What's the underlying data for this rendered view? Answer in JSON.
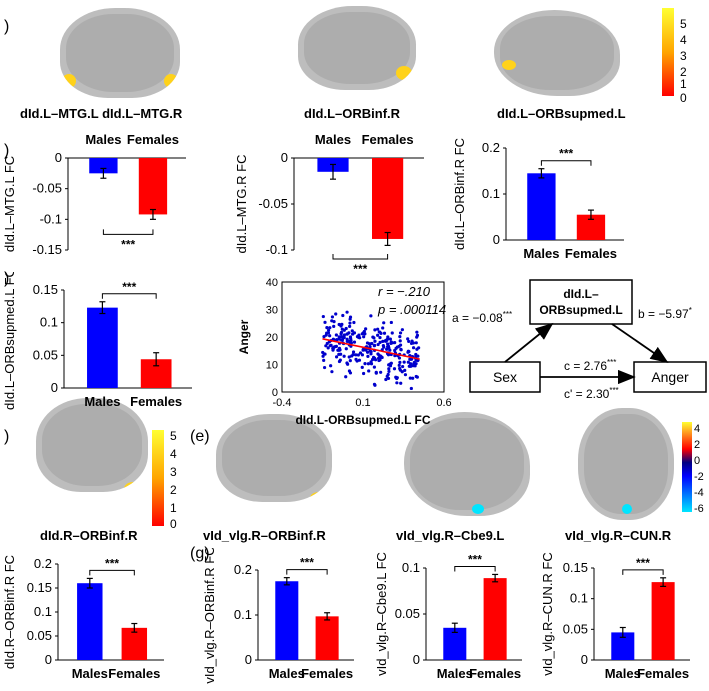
{
  "panel_labels": [
    ")",
    ")",
    ")",
    ")",
    "(e)",
    "(g)"
  ],
  "brain_labels": {
    "b1": "dId.L–MTG.L dId.L–MTG.R",
    "b2": "dId.L–ORBinf.R",
    "b3": "dId.L–ORBsupmed.L",
    "b4": "dId.R–ORBinf.R",
    "b5": "vId_vlg.R–ORBinf.R",
    "b6": "vId_vlg.R–Cbe9.L",
    "b7": "vId_vlg.R–CUN.R"
  },
  "colorbars": {
    "top": {
      "ticks": [
        "5",
        "4",
        "3",
        "2",
        "1",
        "0"
      ],
      "colors": [
        "#ffff33",
        "#ff0000"
      ]
    },
    "mid": {
      "ticks": [
        "5",
        "4",
        "3",
        "2",
        "1",
        "0"
      ],
      "colors": [
        "#ffff33",
        "#ff0000"
      ]
    },
    "right": {
      "ticks": [
        "4",
        "2",
        "0",
        "-2",
        "-4",
        "-6"
      ],
      "colors": [
        "#ffff33",
        "#ff0000",
        "#0000cc",
        "#00e5ff"
      ]
    }
  },
  "significance": "***",
  "chart_data": [
    {
      "id": "c1",
      "type": "bar",
      "categories": [
        "Males",
        "Females"
      ],
      "values": [
        -0.025,
        -0.092
      ],
      "errors": [
        0.008,
        0.008
      ],
      "ylabel": "dId.L–MTG.L FC",
      "ylim": [
        -0.15,
        0
      ],
      "yticks": [
        "0",
        "-0.05",
        "-0.1",
        "-0.15"
      ],
      "colors": [
        "#0000ff",
        "#ff0000"
      ],
      "sig": "***"
    },
    {
      "id": "c2",
      "type": "bar",
      "categories": [
        "Males",
        "Females"
      ],
      "values": [
        -0.015,
        -0.088
      ],
      "errors": [
        0.008,
        0.007
      ],
      "ylabel": "dId.L–MTG.R FC",
      "ylim": [
        -0.1,
        0
      ],
      "yticks": [
        "0",
        "-0.05",
        "-0.1"
      ],
      "colors": [
        "#0000ff",
        "#ff0000"
      ],
      "sig": "***"
    },
    {
      "id": "c3",
      "type": "bar",
      "categories": [
        "Males",
        "Females"
      ],
      "values": [
        0.145,
        0.055
      ],
      "errors": [
        0.01,
        0.01
      ],
      "ylabel": "dId.L–ORBinf.R FC",
      "ylim": [
        0,
        0.2
      ],
      "yticks": [
        "0.2",
        "0.1",
        "0"
      ],
      "colors": [
        "#0000ff",
        "#ff0000"
      ],
      "sig": "***"
    },
    {
      "id": "c4",
      "type": "bar",
      "categories": [
        "Males",
        "Females"
      ],
      "values": [
        0.123,
        0.044
      ],
      "errors": [
        0.009,
        0.01
      ],
      "ylabel": "dId.L–ORBsupmed.L FC",
      "ylim": [
        0,
        0.15
      ],
      "yticks": [
        "0.15",
        "0.1",
        "0.05",
        "0"
      ],
      "colors": [
        "#0000ff",
        "#ff0000"
      ],
      "sig": "***"
    },
    {
      "id": "c6",
      "type": "bar",
      "categories": [
        "Males",
        "Females"
      ],
      "values": [
        0.16,
        0.067
      ],
      "errors": [
        0.01,
        0.009
      ],
      "ylabel": "dId.R–ORBinf.R FC",
      "ylim": [
        0,
        0.2
      ],
      "yticks": [
        "0.2",
        "0.15",
        "0.1",
        "0.05",
        "0"
      ],
      "colors": [
        "#0000ff",
        "#ff0000"
      ],
      "sig": "***"
    },
    {
      "id": "c7",
      "type": "bar",
      "categories": [
        "Males",
        "Females"
      ],
      "values": [
        0.175,
        0.097
      ],
      "errors": [
        0.008,
        0.008
      ],
      "ylabel": "vId_vlg.R–ORBinf.R FC",
      "ylim": [
        0,
        0.2
      ],
      "yticks": [
        "0.2",
        "0.1",
        "0"
      ],
      "colors": [
        "#0000ff",
        "#ff0000"
      ],
      "sig": "***"
    },
    {
      "id": "c8",
      "type": "bar",
      "categories": [
        "Males",
        "Females"
      ],
      "values": [
        0.035,
        0.089
      ],
      "errors": [
        0.005,
        0.004
      ],
      "ylabel": "vId_vlg.R–Cbe9.L FC",
      "ylim": [
        0,
        0.1
      ],
      "yticks": [
        "0.1",
        "0.05",
        "0"
      ],
      "colors": [
        "#0000ff",
        "#ff0000"
      ],
      "sig": "***"
    },
    {
      "id": "c9",
      "type": "bar",
      "categories": [
        "Males",
        "Females"
      ],
      "values": [
        0.045,
        0.127
      ],
      "errors": [
        0.008,
        0.007
      ],
      "ylabel": "vId_vlg.R–CUN.R FC",
      "ylim": [
        0,
        0.15
      ],
      "yticks": [
        "0.15",
        "0.1",
        "0.05",
        "0"
      ],
      "colors": [
        "#0000ff",
        "#ff0000"
      ],
      "sig": "***"
    },
    {
      "id": "scatter",
      "type": "scatter",
      "xlabel": "dId.L-ORBsupmed.L FC",
      "ylabel": "Anger",
      "xlim": [
        -0.4,
        0.6
      ],
      "ylim": [
        0,
        40
      ],
      "xticks": [
        "-0.4",
        "0.1",
        "0.6"
      ],
      "yticks": [
        "40",
        "30",
        "20",
        "10",
        "0"
      ],
      "r_text": "r = −.210",
      "p_text": "p  = .000114",
      "n_points": 300,
      "fit": {
        "slope": -12.3,
        "intercept": 17.5
      },
      "point_color": "#0000cc",
      "fit_color": "#ff0000"
    }
  ],
  "mediation": {
    "mediator": "dId.L–\nORBsupmed.L",
    "mediator_l1": "dId.L–",
    "mediator_l2": "ORBsupmed.L",
    "x": "Sex",
    "y": "Anger",
    "a": "a = −0.08",
    "a_sup": "***",
    "b": "b = −5.97",
    "b_sup": "*",
    "c": "c = 2.76",
    "c_sup": "***",
    "cp": "c' = 2.30",
    "cp_sup": "***"
  }
}
